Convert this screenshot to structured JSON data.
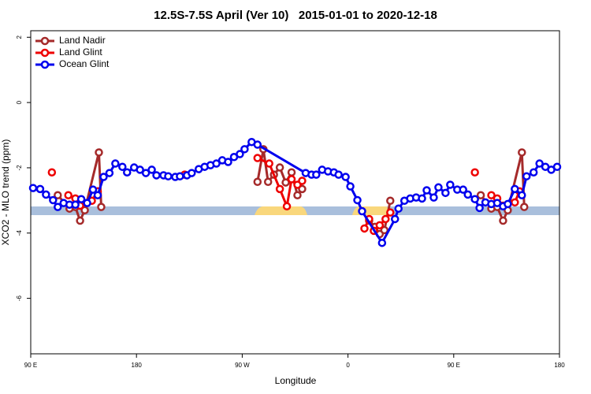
{
  "chart_data": {
    "type": "line",
    "title": "12.5S-7.5S April (Ver 10)   2015-01-01 to 2020-12-18",
    "x_label": "Longitude",
    "y_label": "XCO2 - MLO trend (ppm)",
    "xlim": [
      90,
      540
    ],
    "ylim": [
      -7.7,
      2.2
    ],
    "xticks": [
      {
        "value": 90,
        "label": "90 E"
      },
      180,
      {
        "value": 270,
        "label": "90 W"
      },
      {
        "value": 360,
        "label": "0"
      },
      {
        "value": 450,
        "label": "90 E"
      },
      {
        "value": 540,
        "label": "180"
      }
    ],
    "yticks": [
      2,
      0,
      -2,
      -4,
      -6
    ],
    "legend": "top-left",
    "series": [
      {
        "name": "Land Nadir",
        "color": "#a52a2a",
        "x": [
          113,
          123,
          128,
          132,
          136,
          148,
          150,
          null,
          283,
          288,
          292,
          297,
          302,
          307,
          312,
          317,
          321,
          null,
          378,
          383,
          387,
          391,
          396,
          null,
          473,
          482,
          487,
          492,
          496,
          508,
          510
        ],
        "values": [
          -2.84,
          -3.25,
          -3.2,
          -3.62,
          -3.3,
          -1.53,
          -3.2,
          null,
          -2.43,
          -1.43,
          -2.43,
          -2.21,
          -1.99,
          -2.45,
          -2.14,
          -2.84,
          -2.65,
          null,
          -3.62,
          -3.81,
          -4.03,
          -3.91,
          -3.01,
          null,
          -2.84,
          -3.25,
          -3.2,
          -3.62,
          -3.3,
          -1.53,
          -3.2
        ]
      },
      {
        "name": "Land Glint",
        "color": "#ee0000",
        "x": [
          108,
          null,
          122,
          128,
          132,
          142,
          147,
          null,
          221,
          null,
          283,
          293,
          302,
          308,
          312,
          317,
          321,
          null,
          374,
          378,
          382,
          387,
          392,
          396,
          null,
          468,
          null,
          482,
          487,
          492,
          502,
          506
        ],
        "values": [
          -2.14,
          null,
          -2.84,
          -2.94,
          -3.16,
          -3.01,
          -2.72,
          null,
          -2.21,
          null,
          -1.7,
          -1.87,
          -2.65,
          -3.18,
          -2.35,
          -2.52,
          -2.4,
          null,
          -3.86,
          -3.57,
          -3.93,
          -3.76,
          -3.57,
          -3.37,
          null,
          -2.14,
          null,
          -2.84,
          -2.94,
          -3.16,
          -3.06,
          -2.72
        ]
      },
      {
        "name": "Ocean Glint",
        "color": "#0000ee",
        "x": [
          92,
          98,
          103,
          109,
          113,
          118,
          123,
          128,
          133,
          138,
          143,
          147,
          152,
          157,
          162,
          168,
          172,
          178,
          183,
          188,
          193,
          197,
          203,
          207,
          213,
          217,
          223,
          227,
          233,
          238,
          243,
          248,
          253,
          258,
          263,
          268,
          272,
          278,
          283,
          324,
          329,
          333,
          338,
          343,
          348,
          352,
          358,
          362,
          368,
          372,
          389,
          400,
          403,
          408,
          413,
          418,
          423,
          427,
          433,
          437,
          443,
          447,
          453,
          458,
          462,
          468,
          472,
          477,
          482,
          487,
          492,
          496,
          502,
          508,
          512,
          518,
          523,
          528,
          533,
          538
        ],
        "values": [
          -2.62,
          -2.65,
          -2.82,
          -2.99,
          -3.2,
          -3.08,
          -3.13,
          -3.13,
          -2.96,
          -3.08,
          -2.67,
          -2.84,
          -2.28,
          -2.16,
          -1.87,
          -1.97,
          -2.14,
          -1.99,
          -2.06,
          -2.16,
          -2.06,
          -2.23,
          -2.23,
          -2.26,
          -2.28,
          -2.26,
          -2.23,
          -2.16,
          -2.04,
          -1.97,
          -1.92,
          -1.87,
          -1.77,
          -1.82,
          -1.67,
          -1.58,
          -1.43,
          -1.21,
          -1.29,
          -2.16,
          -2.21,
          -2.21,
          -2.06,
          -2.11,
          -2.14,
          -2.21,
          -2.28,
          -2.57,
          -2.99,
          -3.33,
          -4.3,
          -3.57,
          -3.25,
          -3.01,
          -2.94,
          -2.91,
          -2.94,
          -2.69,
          -2.91,
          -2.6,
          -2.77,
          -2.52,
          -2.67,
          -2.67,
          -2.82,
          -2.96,
          -3.23,
          -3.06,
          -3.11,
          -3.08,
          -3.18,
          -3.11,
          -2.65,
          -2.84,
          -2.26,
          -2.14,
          -1.87,
          -1.97,
          -2.06,
          -1.97
        ]
      }
    ]
  }
}
